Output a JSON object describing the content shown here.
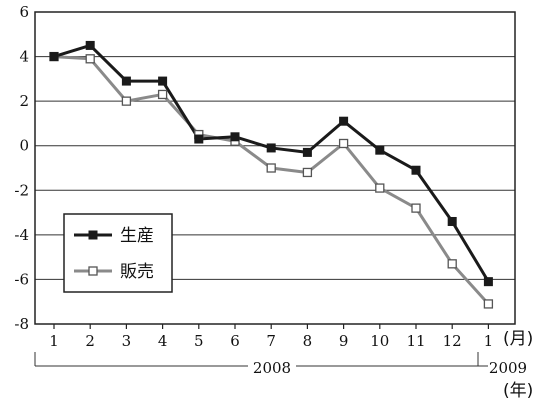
{
  "chart_data": {
    "type": "line",
    "categories": [
      "1",
      "2",
      "3",
      "4",
      "5",
      "6",
      "7",
      "8",
      "9",
      "10",
      "11",
      "12",
      "1"
    ],
    "series": [
      {
        "name": "生産",
        "color": "#1a1a1a",
        "marker": "filled-square",
        "values": [
          4.0,
          4.5,
          2.9,
          2.9,
          0.3,
          0.4,
          -0.1,
          -0.3,
          1.1,
          -0.2,
          -1.1,
          -3.4,
          -6.1
        ]
      },
      {
        "name": "販売",
        "color": "#8a8a8a",
        "marker": "open-square",
        "values": [
          4.0,
          3.9,
          2.0,
          2.3,
          0.5,
          0.2,
          -1.0,
          -1.2,
          0.1,
          -1.9,
          -2.8,
          -5.3,
          -7.1
        ]
      }
    ],
    "y_ticks": [
      "6",
      "4",
      "2",
      "0",
      "-2",
      "-4",
      "-6",
      "-8"
    ],
    "ylim": [
      -8,
      6
    ],
    "grid": "horizontal",
    "legend_position": "lower-left",
    "x_unit": "(月)",
    "year_unit": "(年)",
    "years": [
      "2008",
      "2009"
    ]
  }
}
